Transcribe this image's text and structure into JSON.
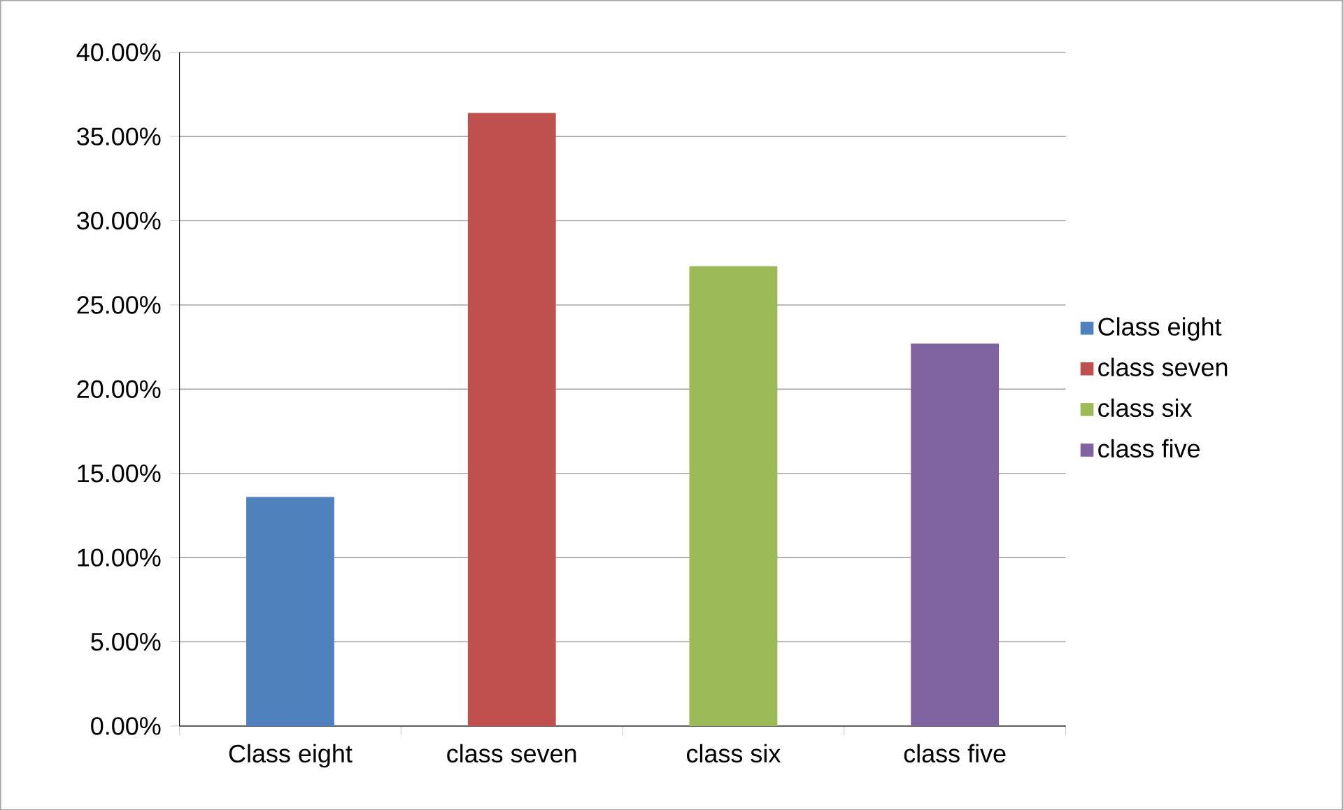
{
  "chart_data": {
    "type": "bar",
    "categories": [
      "Class eight",
      "class seven",
      "class six",
      "class five"
    ],
    "series": [
      {
        "name": "Class eight",
        "color": "#4f81bd",
        "values": [
          13.6,
          null,
          null,
          null
        ]
      },
      {
        "name": "class seven",
        "color": "#c0504d",
        "values": [
          null,
          36.4,
          null,
          null
        ]
      },
      {
        "name": "class six",
        "color": "#9bbb59",
        "values": [
          null,
          null,
          27.3,
          null
        ]
      },
      {
        "name": "class five",
        "color": "#8064a2",
        "values": [
          null,
          null,
          null,
          22.7
        ]
      }
    ],
    "ylim": [
      0,
      40
    ],
    "yticks": [
      {
        "value": 0,
        "label": "0.00%"
      },
      {
        "value": 5,
        "label": "5.00%"
      },
      {
        "value": 10,
        "label": "10.00%"
      },
      {
        "value": 15,
        "label": "15.00%"
      },
      {
        "value": 20,
        "label": "20.00%"
      },
      {
        "value": 25,
        "label": "25.00%"
      },
      {
        "value": 30,
        "label": "30.00%"
      },
      {
        "value": 35,
        "label": "35.00%"
      },
      {
        "value": 40,
        "label": "40.00%"
      }
    ],
    "grid": "y",
    "legend": "right"
  }
}
